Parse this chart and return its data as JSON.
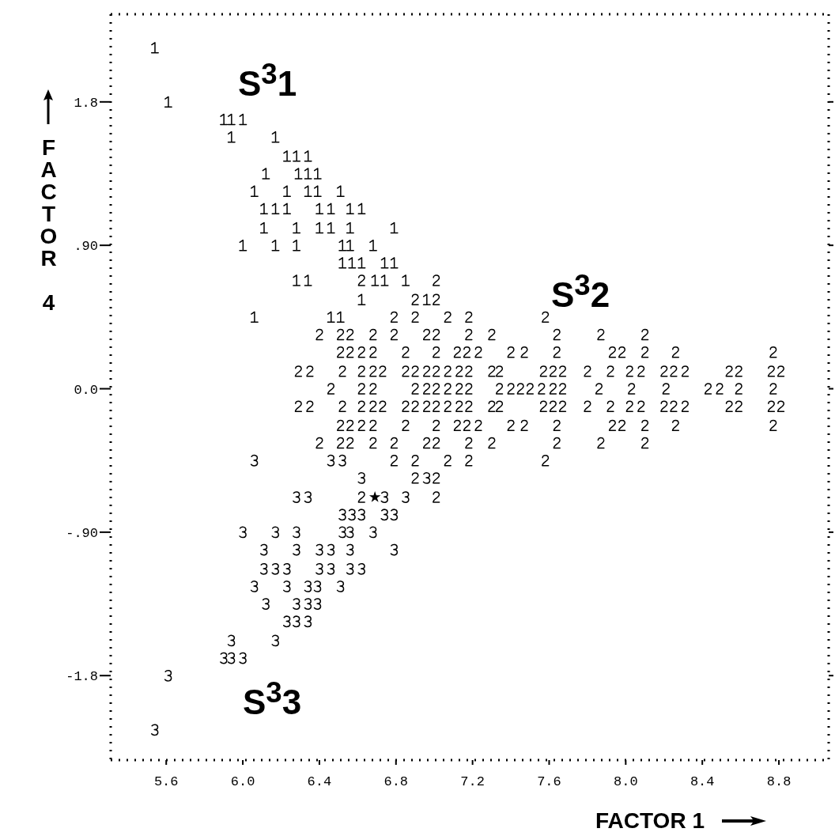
{
  "chart_data": {
    "type": "scatter",
    "xlabel": "FACTOR 1",
    "ylabel": "FACTOR 4",
    "xlim": [
      5.31,
      9.06
    ],
    "ylim": [
      -2.33,
      2.35
    ],
    "xticks": [
      5.6,
      {
        "value": 6.0,
        "label": "6.0"
      },
      6.4,
      6.8,
      7.2,
      7.6,
      {
        "value": 8.0,
        "label": "8.0"
      },
      8.4,
      8.8
    ],
    "yticks": [
      1.8,
      {
        "value": 0.9,
        "label": ".90"
      },
      {
        "value": 0,
        "label": "0.0"
      },
      {
        "value": -0.9,
        "label": "-.90"
      },
      -1.8
    ],
    "grid": false,
    "legend": false,
    "annotations": [
      "S$^{3}$1",
      "S$^{3}$2",
      "S$^{3}$3"
    ],
    "series": [
      {
        "color": "#000000",
        "x": [
          5.54,
          5.61,
          5.9,
          5.94,
          6.0,
          5.94,
          6.17,
          6.23,
          6.28,
          6.34,
          6.12,
          6.29,
          6.34,
          6.39,
          6.06,
          6.23,
          6.34,
          6.39,
          6.51,
          6.11,
          6.17,
          6.23,
          6.4,
          6.46,
          6.56,
          6.62,
          6.11,
          6.28,
          6.4,
          6.46,
          6.56,
          6.79,
          6.0,
          6.17,
          6.28,
          6.52,
          6.56,
          6.68,
          6.52,
          6.57,
          6.62,
          6.74,
          6.79,
          6.28,
          6.34,
          6.69,
          6.74,
          6.85,
          6.62,
          6.96,
          6.06,
          6.46,
          6.51
        ],
        "values": [
          2.14,
          1.8,
          1.69,
          1.69,
          1.69,
          1.58,
          1.58,
          1.46,
          1.46,
          1.46,
          1.35,
          1.35,
          1.35,
          1.35,
          1.24,
          1.24,
          1.24,
          1.24,
          1.24,
          1.13,
          1.13,
          1.13,
          1.13,
          1.13,
          1.13,
          1.13,
          1.01,
          1.01,
          1.01,
          1.01,
          1.01,
          1.01,
          0.9,
          0.9,
          0.9,
          0.9,
          0.9,
          0.9,
          0.79,
          0.79,
          0.79,
          0.79,
          0.79,
          0.68,
          0.68,
          0.68,
          0.68,
          0.68,
          0.56,
          0.56,
          0.45,
          0.45,
          0.45
        ]
      },
      {
        "color": "#000000",
        "x": [
          6.62,
          7.01,
          6.9,
          7.01,
          6.79,
          6.9,
          7.07,
          7.18,
          7.58,
          6.4,
          6.51,
          6.56,
          6.68,
          6.79,
          6.96,
          7.01,
          7.18,
          7.3,
          7.64,
          7.87,
          8.1,
          6.51,
          6.56,
          6.62,
          6.68,
          6.85,
          7.01,
          7.12,
          7.17,
          7.23,
          7.4,
          7.47,
          7.64,
          7.93,
          7.98,
          8.1,
          8.26,
          8.77,
          6.29,
          6.35,
          6.52,
          6.62,
          6.68,
          6.73,
          6.85,
          6.9,
          6.96,
          7.01,
          7.07,
          7.13,
          7.18,
          7.3,
          7.34,
          7.57,
          7.62,
          7.67,
          7.8,
          7.92,
          8.02,
          8.08,
          8.2,
          8.25,
          8.31,
          8.54,
          8.59,
          8.76,
          8.81,
          6.46,
          6.62,
          6.68,
          6.9,
          6.96,
          7.01,
          7.07,
          7.13,
          7.18,
          7.34,
          7.4,
          7.45,
          7.5,
          7.56,
          7.62,
          7.67,
          7.86,
          8.03,
          8.21,
          8.43,
          8.49,
          8.59,
          8.77,
          6.29,
          6.35,
          6.52,
          6.62,
          6.68,
          6.73,
          6.85,
          6.9,
          6.96,
          7.01,
          7.07,
          7.13,
          7.18,
          7.3,
          7.34,
          7.57,
          7.62,
          7.67,
          7.8,
          7.92,
          8.02,
          8.08,
          8.2,
          8.25,
          8.31,
          8.54,
          8.59,
          8.76,
          8.81,
          6.51,
          6.56,
          6.62,
          6.68,
          6.85,
          7.01,
          7.12,
          7.17,
          7.23,
          7.4,
          7.47,
          7.64,
          7.93,
          7.98,
          8.1,
          8.26,
          8.77,
          6.4,
          6.51,
          6.56,
          6.68,
          6.79,
          6.96,
          7.01,
          7.18,
          7.3,
          7.64,
          7.87,
          8.1,
          6.79,
          6.9,
          7.07,
          7.18,
          7.58,
          6.9,
          7.01,
          6.62,
          7.01
        ],
        "values": [
          0.68,
          0.68,
          0.56,
          0.56,
          0.45,
          0.45,
          0.45,
          0.45,
          0.45,
          0.34,
          0.34,
          0.34,
          0.34,
          0.34,
          0.34,
          0.34,
          0.34,
          0.34,
          0.34,
          0.34,
          0.34,
          0.23,
          0.23,
          0.23,
          0.23,
          0.23,
          0.23,
          0.23,
          0.23,
          0.23,
          0.23,
          0.23,
          0.23,
          0.23,
          0.23,
          0.23,
          0.23,
          0.23,
          0.11,
          0.11,
          0.11,
          0.11,
          0.11,
          0.11,
          0.11,
          0.11,
          0.11,
          0.11,
          0.11,
          0.11,
          0.11,
          0.11,
          0.11,
          0.11,
          0.11,
          0.11,
          0.11,
          0.11,
          0.11,
          0.11,
          0.11,
          0.11,
          0.11,
          0.11,
          0.11,
          0.11,
          0.11,
          0,
          0,
          0,
          0,
          0,
          0,
          0,
          0,
          0,
          0,
          0,
          0,
          0,
          0,
          0,
          0,
          0,
          0,
          0,
          0,
          0,
          0,
          0,
          -0.11,
          -0.11,
          -0.11,
          -0.11,
          -0.11,
          -0.11,
          -0.11,
          -0.11,
          -0.11,
          -0.11,
          -0.11,
          -0.11,
          -0.11,
          -0.11,
          -0.11,
          -0.11,
          -0.11,
          -0.11,
          -0.11,
          -0.11,
          -0.11,
          -0.11,
          -0.11,
          -0.11,
          -0.11,
          -0.11,
          -0.11,
          -0.11,
          -0.11,
          -0.23,
          -0.23,
          -0.23,
          -0.23,
          -0.23,
          -0.23,
          -0.23,
          -0.23,
          -0.23,
          -0.23,
          -0.23,
          -0.23,
          -0.23,
          -0.23,
          -0.23,
          -0.23,
          -0.23,
          -0.34,
          -0.34,
          -0.34,
          -0.34,
          -0.34,
          -0.34,
          -0.34,
          -0.34,
          -0.34,
          -0.34,
          -0.34,
          -0.34,
          -0.45,
          -0.45,
          -0.45,
          -0.45,
          -0.45,
          -0.56,
          -0.56,
          -0.68,
          -0.68
        ]
      },
      {
        "color": "#000000",
        "x": [
          6.06,
          6.46,
          6.52,
          6.62,
          6.96,
          6.28,
          6.34,
          6.74,
          6.85,
          6.52,
          6.57,
          6.62,
          6.74,
          6.79,
          6.0,
          6.17,
          6.28,
          6.52,
          6.56,
          6.68,
          6.11,
          6.28,
          6.4,
          6.46,
          6.56,
          6.79,
          6.11,
          6.17,
          6.23,
          6.4,
          6.46,
          6.56,
          6.62,
          6.06,
          6.23,
          6.34,
          6.39,
          6.51,
          6.12,
          6.28,
          6.34,
          6.39,
          6.23,
          6.28,
          6.34,
          5.94,
          6.17,
          5.9,
          5.94,
          6.0,
          5.61,
          5.54
        ],
        "values": [
          -0.45,
          -0.45,
          -0.45,
          -0.56,
          -0.56,
          -0.68,
          -0.68,
          -0.68,
          -0.68,
          -0.79,
          -0.79,
          -0.79,
          -0.79,
          -0.79,
          -0.9,
          -0.9,
          -0.9,
          -0.9,
          -0.9,
          -0.9,
          -1.01,
          -1.01,
          -1.01,
          -1.01,
          -1.01,
          -1.01,
          -1.13,
          -1.13,
          -1.13,
          -1.13,
          -1.13,
          -1.13,
          -1.13,
          -1.24,
          -1.24,
          -1.24,
          -1.24,
          -1.24,
          -1.35,
          -1.35,
          -1.35,
          -1.35,
          -1.46,
          -1.46,
          -1.46,
          -1.58,
          -1.58,
          -1.69,
          -1.69,
          -1.69,
          -1.8,
          -2.14
        ]
      },
      {
        "color": "#000000",
        "marker": "star",
        "x": [
          6.69
        ],
        "values": [
          -0.68
        ]
      }
    ]
  }
}
